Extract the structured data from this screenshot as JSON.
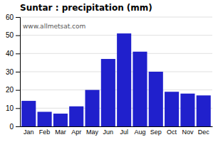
{
  "chart_data": {
    "type": "bar",
    "title": "Suntar : precipitation (mm)",
    "categories": [
      "Jan",
      "Feb",
      "Mar",
      "Apr",
      "May",
      "Jun",
      "Jul",
      "Aug",
      "Sep",
      "Oct",
      "Nov",
      "Dec"
    ],
    "values": [
      14,
      8,
      7,
      11,
      20,
      37,
      51,
      41,
      30,
      19,
      18,
      17
    ],
    "color": "#2020cc",
    "ylim": [
      0,
      60
    ],
    "yticks": [
      0,
      10,
      20,
      30,
      40,
      50,
      60
    ],
    "grid": true,
    "annotations": [
      "www.allmetsat.com"
    ]
  }
}
